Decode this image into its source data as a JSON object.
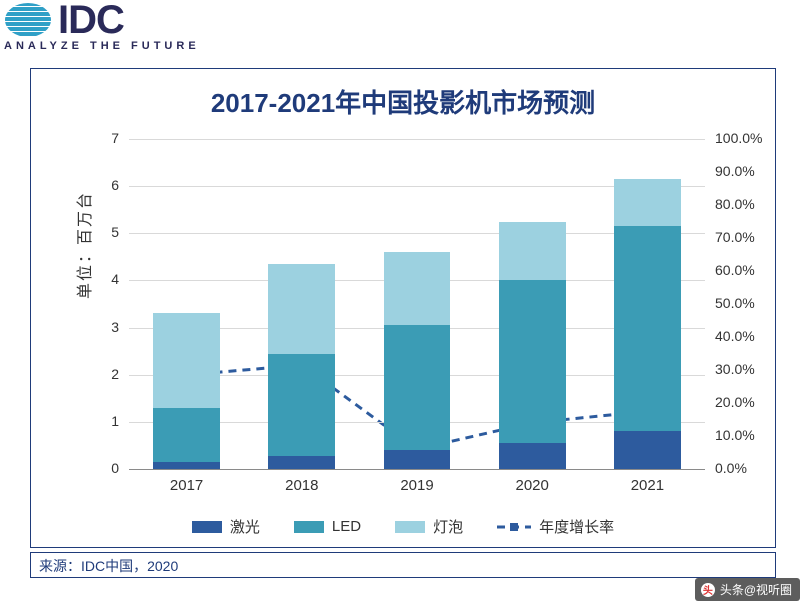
{
  "logo": {
    "brand": "IDC",
    "tagline": "ANALYZE THE FUTURE"
  },
  "chart": {
    "type": "stacked-bar-with-line",
    "title": "2017-2021年中国投影机市场预测",
    "title_fontsize": 26,
    "title_color": "#1f3b7a",
    "border_color": "#1f3b7a",
    "background_color": "#ffffff",
    "grid_color": "#d9d9d9",
    "axis_color": "#8a8a8a",
    "y_left": {
      "label": "单位：百万台",
      "min": 0,
      "max": 7,
      "step": 1,
      "label_fontsize": 16,
      "tick_fontsize": 14
    },
    "y_right": {
      "min": 0,
      "max": 100,
      "step": 10,
      "suffix": "%",
      "decimals": 1,
      "tick_fontsize": 14
    },
    "categories": [
      "2017",
      "2018",
      "2019",
      "2020",
      "2021"
    ],
    "series": [
      {
        "key": "laser",
        "label": "激光",
        "color": "#2d5b9e",
        "values": [
          0.15,
          0.28,
          0.4,
          0.55,
          0.8
        ]
      },
      {
        "key": "led",
        "label": "LED",
        "color": "#3b9cb5",
        "values": [
          1.15,
          2.15,
          2.65,
          3.45,
          4.35
        ]
      },
      {
        "key": "lamp",
        "label": "灯泡",
        "color": "#9cd1e0",
        "values": [
          2.0,
          1.92,
          1.55,
          1.25,
          1.0
        ]
      }
    ],
    "line": {
      "key": "growth",
      "label": "年度增长率",
      "color": "#2d5b9e",
      "dash": "8,6",
      "width": 3,
      "marker": "square",
      "marker_size": 9,
      "values": [
        28.5,
        31.5,
        6.0,
        14.0,
        17.5
      ]
    },
    "bar_width": 0.58,
    "legend_fontsize": 15
  },
  "source": {
    "label": "来源：",
    "text": "IDC中国，2020",
    "color": "#1f3b7a",
    "fontsize": 14
  },
  "watermark": {
    "text": "头条@视听圈"
  }
}
